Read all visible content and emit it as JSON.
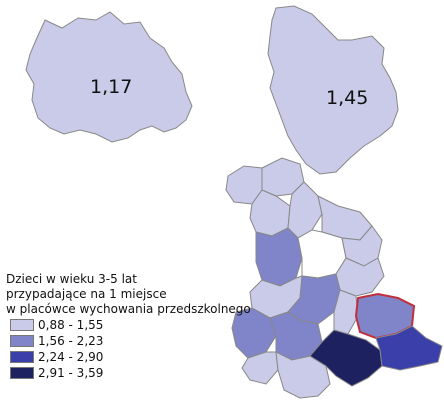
{
  "regions": [
    {
      "name": "region-left",
      "value": "1,17"
    },
    {
      "name": "region-right",
      "value": "1,45"
    }
  ],
  "legend": {
    "title_lines": [
      "Dzieci w wieku 3-5 lat",
      "przypadające na 1 miejsce",
      "w placówce wychowania przedszkolnego"
    ],
    "classes": [
      {
        "label": "0,88 - 1,55",
        "color": "#c9cbe8"
      },
      {
        "label": "1,56 - 2,23",
        "color": "#8084c8"
      },
      {
        "label": "2,24 - 2,90",
        "color": "#3a3faa"
      },
      {
        "label": "2,91 - 3,59",
        "color": "#1e2160"
      }
    ]
  },
  "colors": {
    "selected_outline": "#c0303a",
    "no_data": "#ffffff"
  }
}
